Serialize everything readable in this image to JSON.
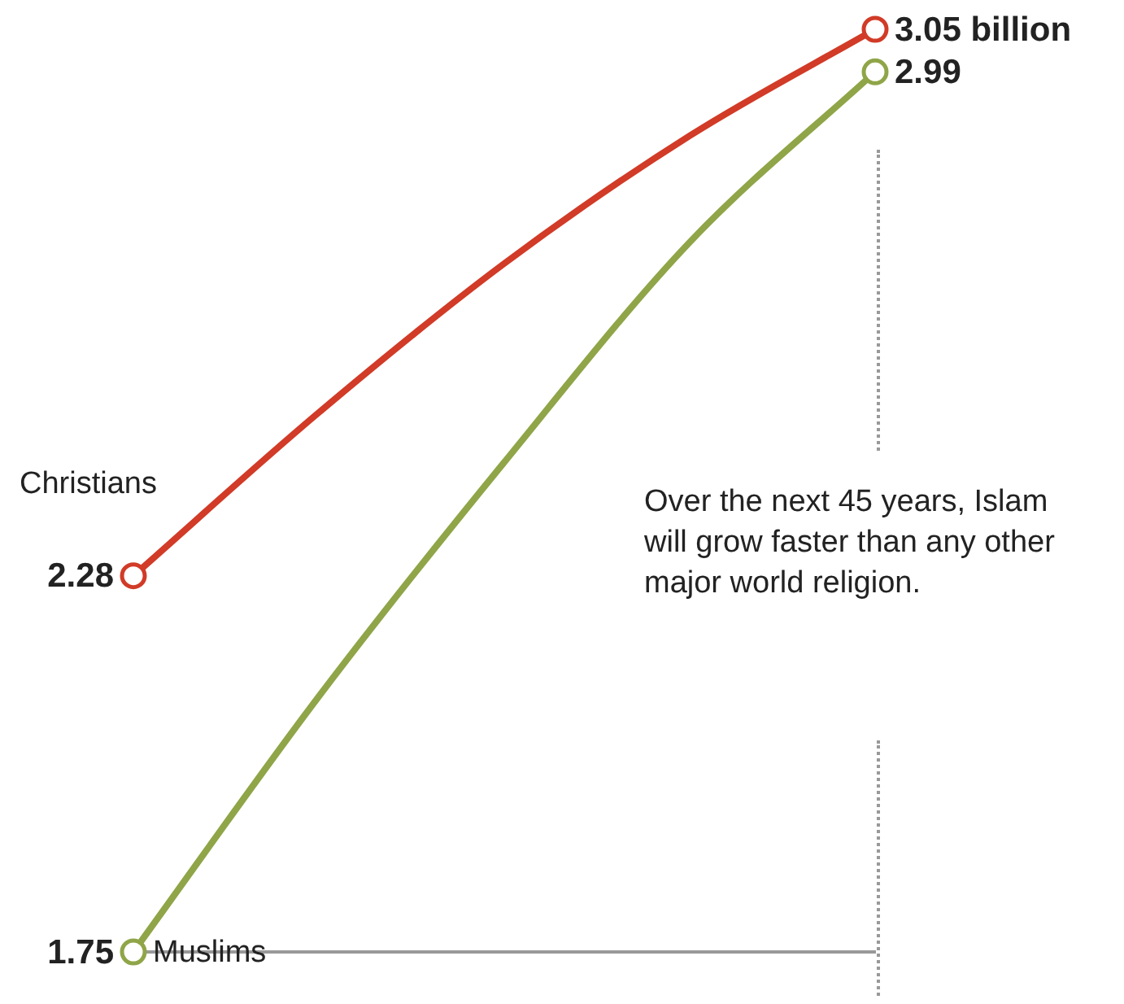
{
  "chart_data": {
    "type": "line",
    "categories": [
      null,
      null,
      null,
      null,
      null
    ],
    "series": [
      {
        "name": "Christians",
        "color": "#d13b27",
        "values": [
          2.28,
          2.51,
          2.72,
          2.9,
          3.05
        ],
        "value_labels": [
          "2.28",
          null,
          null,
          null,
          "3.05 billion"
        ]
      },
      {
        "name": "Muslims",
        "color": "#8fa548",
        "values": [
          1.75,
          2.11,
          2.44,
          2.75,
          2.99
        ],
        "value_labels": [
          "1.75",
          null,
          null,
          null,
          "2.99"
        ]
      }
    ],
    "tick_labels": false,
    "grid": false,
    "legend": false,
    "line_style": "solid",
    "annotations": [
      "Over the next 45 years, Islam will grow faster than any other major world religion."
    ]
  }
}
